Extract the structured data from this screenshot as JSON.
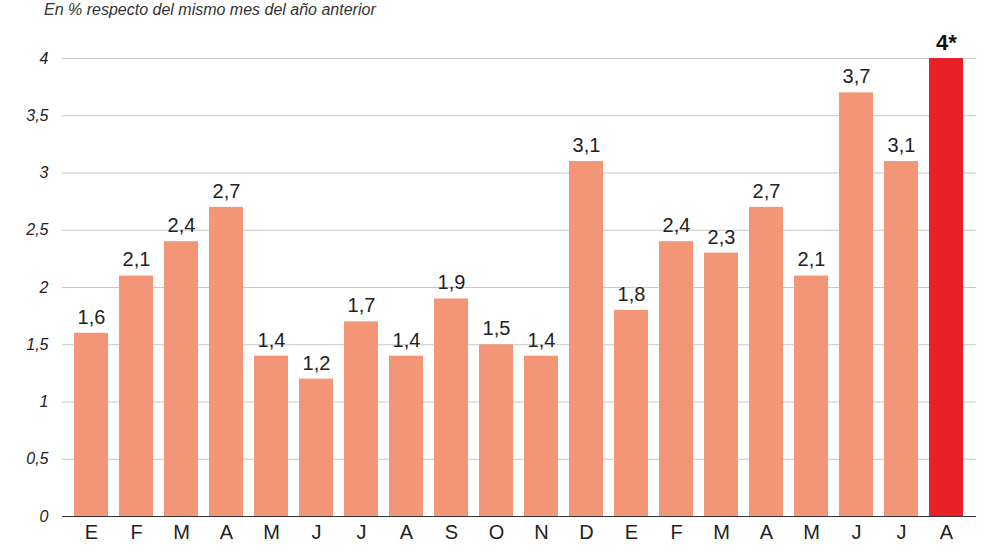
{
  "chart_data": {
    "type": "bar",
    "subtitle": "En % respecto del mismo mes del año anterior",
    "categories": [
      "E",
      "F",
      "M",
      "A",
      "M",
      "J",
      "J",
      "A",
      "S",
      "O",
      "N",
      "D",
      "E",
      "F",
      "M",
      "A",
      "M",
      "J",
      "J",
      "A"
    ],
    "values": [
      1.6,
      2.1,
      2.4,
      2.7,
      1.4,
      1.2,
      1.7,
      1.4,
      1.9,
      1.5,
      1.4,
      3.1,
      1.8,
      2.4,
      2.3,
      2.7,
      2.1,
      3.7,
      3.1,
      4
    ],
    "value_labels": [
      "1,6",
      "2,1",
      "2,4",
      "2,7",
      "1,4",
      "1,2",
      "1,7",
      "1,4",
      "1,9",
      "1,5",
      "1,4",
      "3,1",
      "1,8",
      "2,4",
      "2,3",
      "2,7",
      "2,1",
      "3,7",
      "3,1",
      "4*"
    ],
    "colors": [
      "#f39677",
      "#f39677",
      "#f39677",
      "#f39677",
      "#f39677",
      "#f39677",
      "#f39677",
      "#f39677",
      "#f39677",
      "#f39677",
      "#f39677",
      "#f39677",
      "#f39677",
      "#f39677",
      "#f39677",
      "#f39677",
      "#f39677",
      "#f39677",
      "#f39677",
      "#e8202a"
    ],
    "ylim": [
      0,
      4
    ],
    "yticks": [
      0,
      {
        "value": 0.5,
        "label": "0,5"
      },
      1,
      {
        "value": 1.5,
        "label": "1,5"
      },
      2,
      {
        "value": 2.5,
        "label": "2,5"
      },
      3,
      {
        "value": 3.5,
        "label": "3,5"
      },
      4
    ],
    "grid": true,
    "data_labels": true
  }
}
